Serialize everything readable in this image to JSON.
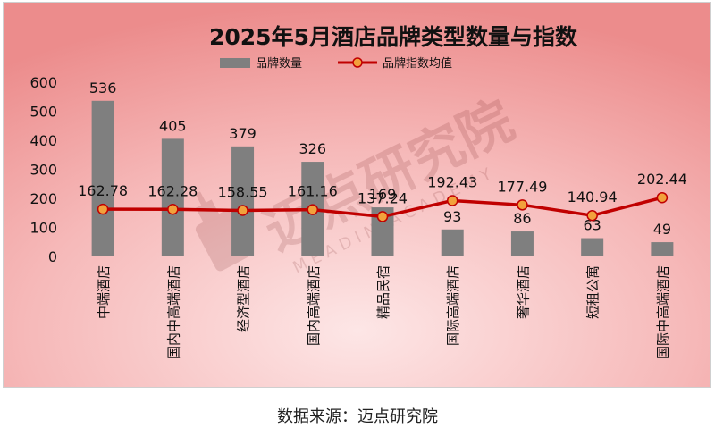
{
  "chart_data": {
    "type": "bar",
    "title": "2025年5月酒店品牌类型数量与指数",
    "categories": [
      "中端酒店",
      "国内中高端酒店",
      "经济型酒店",
      "国内高端酒店",
      "精品民宿",
      "国际高端酒店",
      "奢华酒店",
      "短租公寓",
      "国际中高端酒店"
    ],
    "series": [
      {
        "name": "品牌数量",
        "kind": "bar",
        "values": [
          536,
          405,
          379,
          326,
          169,
          93,
          86,
          63,
          49
        ]
      },
      {
        "name": "品牌指数均值",
        "kind": "line",
        "values": [
          162.78,
          162.28,
          158.55,
          161.16,
          137.24,
          192.43,
          177.49,
          140.94,
          202.44
        ]
      }
    ],
    "yticks": [
      0,
      100,
      200,
      300,
      400,
      500,
      600
    ],
    "ylim": [
      0,
      600
    ],
    "xlabel": "",
    "ylabel": "",
    "legend_position": "top",
    "colors": {
      "bar": "#7f7f7f",
      "line": "#c00000",
      "marker_fill": "#f2a13c",
      "marker_stroke": "#c00000"
    },
    "watermark": {
      "text_cn": "迈点研究院",
      "text_en": "MEADIN ACADEMY"
    }
  },
  "footer": {
    "source": "数据来源：迈点研究院"
  }
}
